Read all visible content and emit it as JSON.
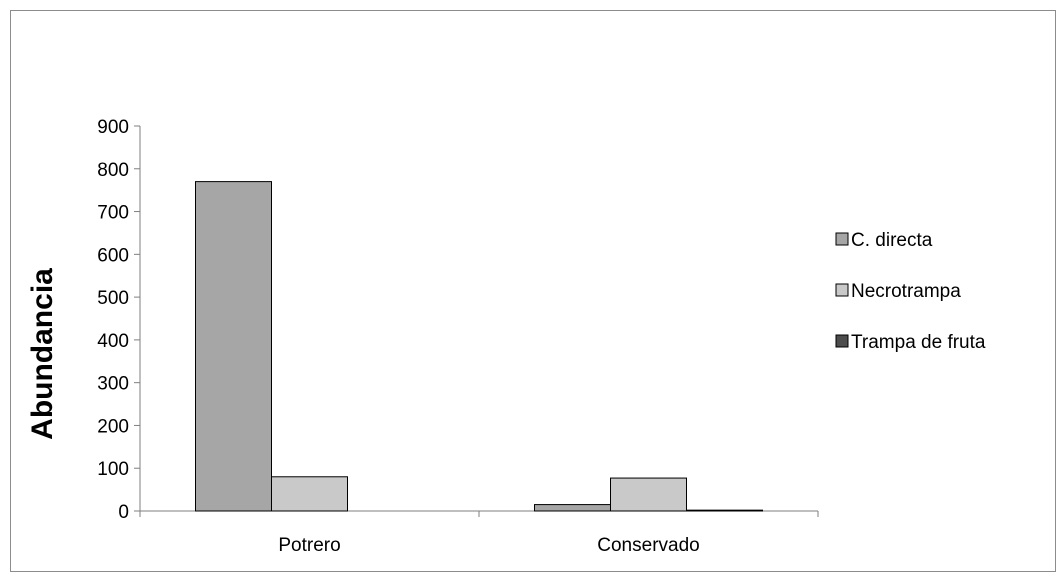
{
  "chart_data": {
    "type": "bar",
    "title": "",
    "xlabel": "",
    "ylabel": "Abundancia",
    "ylim": [
      0,
      900
    ],
    "yticks": [
      0,
      100,
      200,
      300,
      400,
      500,
      600,
      700,
      800,
      900
    ],
    "categories": [
      "Potrero",
      "Conservado"
    ],
    "series": [
      {
        "name": "C. directa",
        "values": [
          770,
          15
        ],
        "color": "#a6a6a6"
      },
      {
        "name": "Necrotrampa",
        "values": [
          80,
          77
        ],
        "color": "#c9c9c9"
      },
      {
        "name": "Trampa de fruta",
        "values": [
          0,
          2
        ],
        "color": "#4d4d4d"
      }
    ],
    "grid": false,
    "legend_position": "right"
  }
}
